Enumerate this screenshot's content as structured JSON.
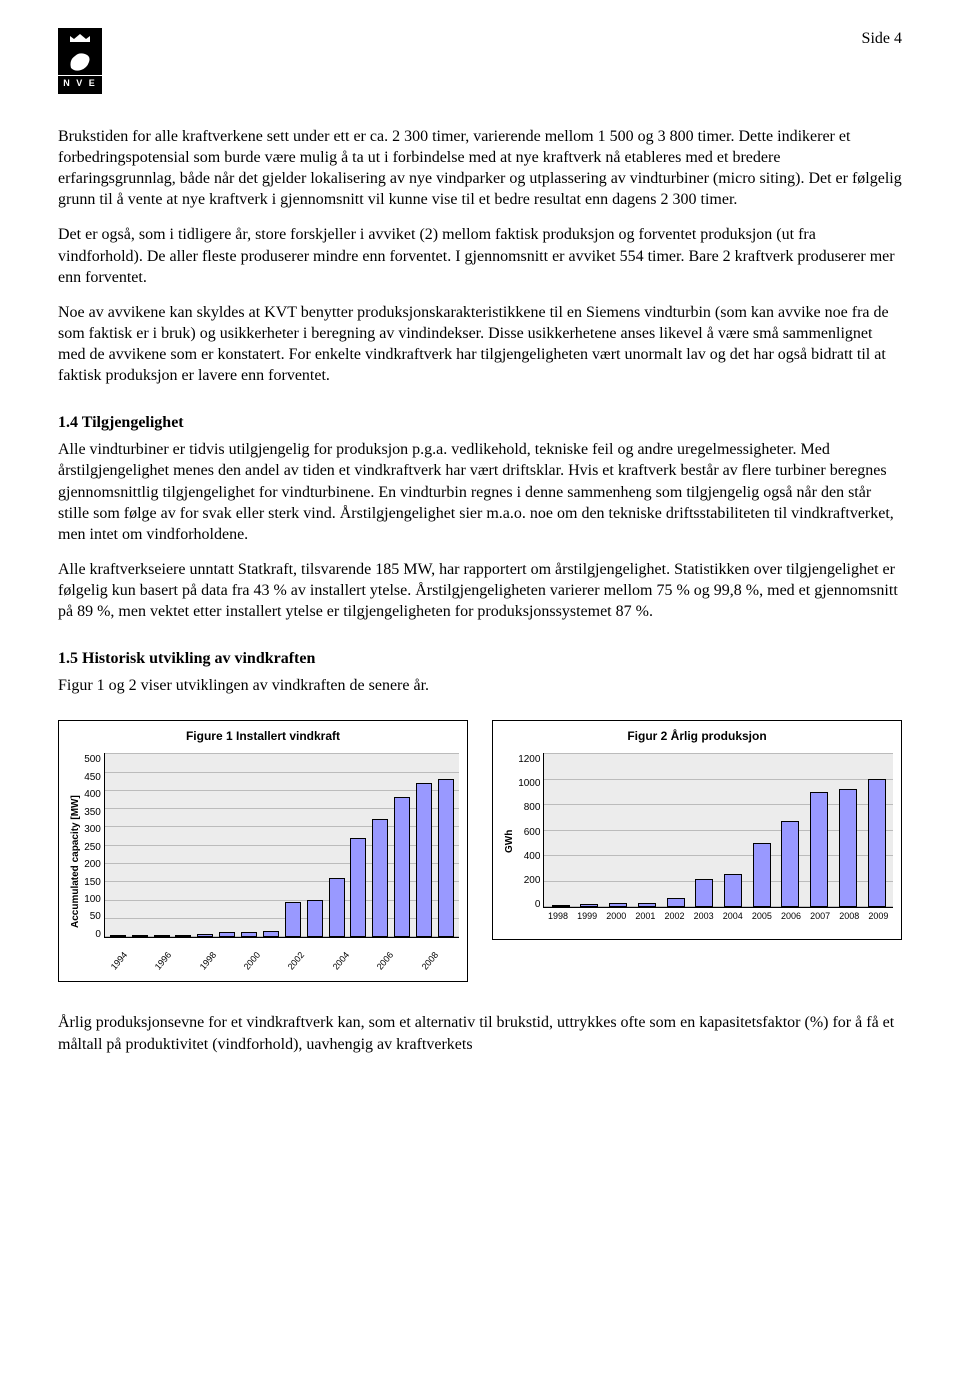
{
  "header": {
    "page_label": "Side 4",
    "logo_text": "N V E"
  },
  "paragraphs": {
    "p1": "Brukstiden for alle kraftverkene sett under ett er ca. 2 300 timer, varierende mellom 1 500 og 3 800 timer. Dette indikerer et forbedringspotensial som burde være mulig å ta ut i forbindelse med at nye kraftverk nå etableres med et bredere erfaringsgrunnlag, både når det gjelder lokalisering av nye vindparker og utplassering av vindturbiner (micro siting). Det er følgelig grunn til å vente at nye kraftverk i gjennomsnitt vil kunne vise til et bedre resultat enn dagens 2 300 timer.",
    "p2": "Det er også, som i tidligere år, store forskjeller i avviket (2) mellom faktisk produksjon og forventet produksjon (ut fra vindforhold). De aller fleste produserer mindre enn forventet. I gjennomsnitt er avviket 554 timer. Bare 2 kraftverk produserer mer enn forventet.",
    "p3": "Noe av avvikene kan skyldes at KVT benytter produksjonskarakteristikkene til en Siemens vindturbin (som kan avvike noe fra de som faktisk er i bruk) og usikkerheter i beregning av vindindekser. Disse usikkerhetene anses likevel å være små sammenlignet med de avvikene som er konstatert. For enkelte vindkraftverk har tilgjengeligheten vært unormalt lav og det har også bidratt til at faktisk produksjon er lavere enn forventet.",
    "s14_title": "1.4 Tilgjengelighet",
    "p4": "Alle vindturbiner er tidvis utilgjengelig for produksjon p.g.a. vedlikehold, tekniske feil og andre uregelmessigheter. Med årstilgjengelighet menes den andel av tiden et vindkraftverk har vært driftsklar. Hvis et kraftverk består av flere turbiner beregnes gjennomsnittlig tilgjengelighet for vindturbinene. En vindturbin regnes i denne sammenheng som tilgjengelig også når den står stille som følge av for svak eller sterk vind. Årstilgjengelighet sier m.a.o. noe om den tekniske driftsstabiliteten til vindkraftverket, men intet om vindforholdene.",
    "p5": "Alle kraftverkseiere unntatt Statkraft, tilsvarende 185 MW, har rapportert om årstilgjengelighet. Statistikken over tilgjengelighet er følgelig kun basert på data fra 43 % av installert ytelse. Årstilgjengeligheten varierer mellom 75 % og 99,8 %, med et gjennomsnitt på 89 %, men vektet etter installert ytelse er tilgjengeligheten for produksjonssystemet 87 %.",
    "s15_title": "1.5 Historisk utvikling av vindkraften",
    "p6": "Figur 1 og 2 viser utviklingen av vindkraften de senere år.",
    "footer": "Årlig produksjonsevne for et vindkraftverk kan, som et alternativ til brukstid, uttrykkes ofte som en kapasitetsfaktor (%) for å få et måltall på produktivitet (vindforhold), uavhengig av kraftverkets"
  },
  "chart1": {
    "type": "bar",
    "title": "Figure 1 Installert vindkraft",
    "ylabel": "Accumulated capacity [MW]",
    "ylim": [
      0,
      500
    ],
    "ytick_step": 50,
    "yticks": [
      "500",
      "450",
      "400",
      "350",
      "300",
      "250",
      "200",
      "150",
      "100",
      "50",
      "0"
    ],
    "categories_shown": [
      "1994",
      "1996",
      "1998",
      "2000",
      "2002",
      "2004",
      "2006",
      "2008"
    ],
    "all_years": [
      "1994",
      "1995",
      "1996",
      "1997",
      "1998",
      "1999",
      "2000",
      "2001",
      "2002",
      "2003",
      "2004",
      "2005",
      "2006",
      "2007",
      "2008",
      "2009"
    ],
    "values": [
      4,
      4,
      4,
      4,
      8,
      13,
      13,
      17,
      97,
      100,
      160,
      270,
      320,
      380,
      420,
      430
    ],
    "bar_color": "#9999ff",
    "bar_border": "#000000",
    "background_color": "#ececec",
    "grid_color": "#bbbbbb",
    "title_fontsize": 12,
    "label_fontsize": 10
  },
  "chart2": {
    "type": "bar",
    "title": "Figur 2 Årlig produksjon",
    "ylabel": "GWh",
    "ylim": [
      0,
      1200
    ],
    "ytick_step": 200,
    "yticks": [
      "1200",
      "1000",
      "800",
      "600",
      "400",
      "200",
      "0"
    ],
    "categories": [
      "1998",
      "1999",
      "2000",
      "2001",
      "2002",
      "2003",
      "2004",
      "2005",
      "2006",
      "2007",
      "2008",
      "2009"
    ],
    "values": [
      8,
      25,
      30,
      30,
      75,
      220,
      260,
      500,
      670,
      900,
      920,
      1000
    ],
    "bar_color": "#9999ff",
    "bar_border": "#000000",
    "background_color": "#ececec",
    "grid_color": "#bbbbbb",
    "title_fontsize": 12,
    "label_fontsize": 10
  }
}
